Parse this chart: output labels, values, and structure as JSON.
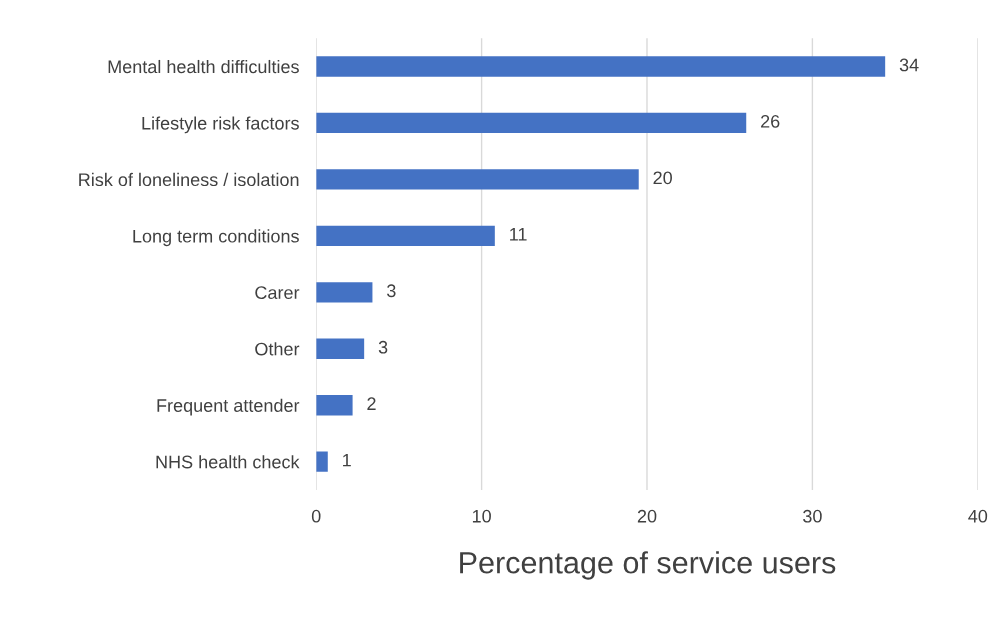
{
  "chart_data": {
    "type": "bar",
    "orientation": "horizontal",
    "xlabel": "Percentage of service users",
    "categories": [
      "Mental health difficulties",
      "Lifestyle risk factors",
      "Risk of loneliness / isolation",
      "Long term conditions",
      "Carer",
      "Other",
      "Frequent attender",
      "NHS health check"
    ],
    "values": [
      34.4,
      26.0,
      19.5,
      10.8,
      3.4,
      2.9,
      2.2,
      0.7
    ],
    "value_labels": [
      "34",
      "26",
      "20",
      "11",
      "3",
      "3",
      "2",
      "1"
    ],
    "color": "#4472c4",
    "xlim": [
      0,
      40
    ],
    "xticks": [
      0,
      10,
      20,
      30,
      40
    ],
    "grid": "x",
    "legend": false
  }
}
